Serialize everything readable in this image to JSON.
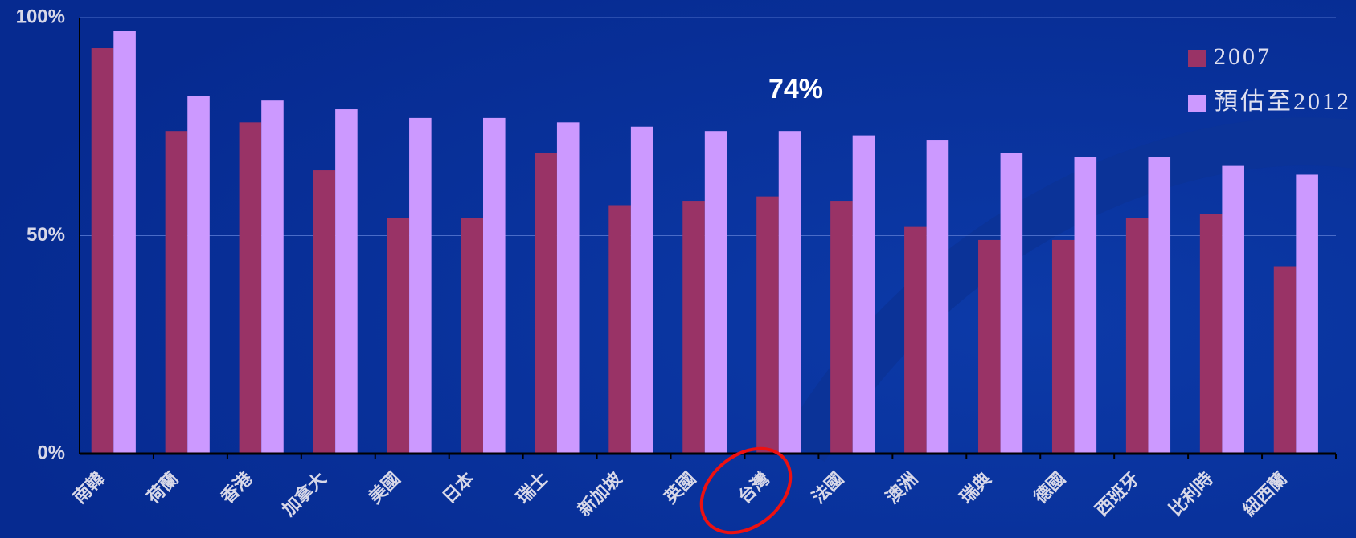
{
  "chart_data": {
    "type": "bar",
    "categories": [
      "南韓",
      "荷蘭",
      "香港",
      "加拿大",
      "美國",
      "日本",
      "瑞士",
      "新加坡",
      "英國",
      "台灣",
      "法國",
      "澳洲",
      "瑞典",
      "德國",
      "西班牙",
      "比利時",
      "紐西蘭"
    ],
    "series": [
      {
        "name": "2007",
        "color": "#993366",
        "values": [
          93,
          74,
          76,
          65,
          54,
          54,
          69,
          57,
          58,
          59,
          58,
          52,
          49,
          49,
          54,
          55,
          43
        ]
      },
      {
        "name": "預估至2012",
        "color": "#cc99ff",
        "values": [
          97,
          82,
          81,
          79,
          77,
          77,
          76,
          75,
          74,
          74,
          73,
          72,
          69,
          68,
          68,
          66,
          64
        ]
      }
    ],
    "ylim": [
      0,
      100
    ],
    "yticks": [
      {
        "value": 0,
        "label": "0%"
      },
      {
        "value": 50,
        "label": "50%"
      },
      {
        "value": 100,
        "label": "100%"
      }
    ],
    "grid": true,
    "legend": "upper right",
    "annotations": [
      "74%"
    ]
  }
}
